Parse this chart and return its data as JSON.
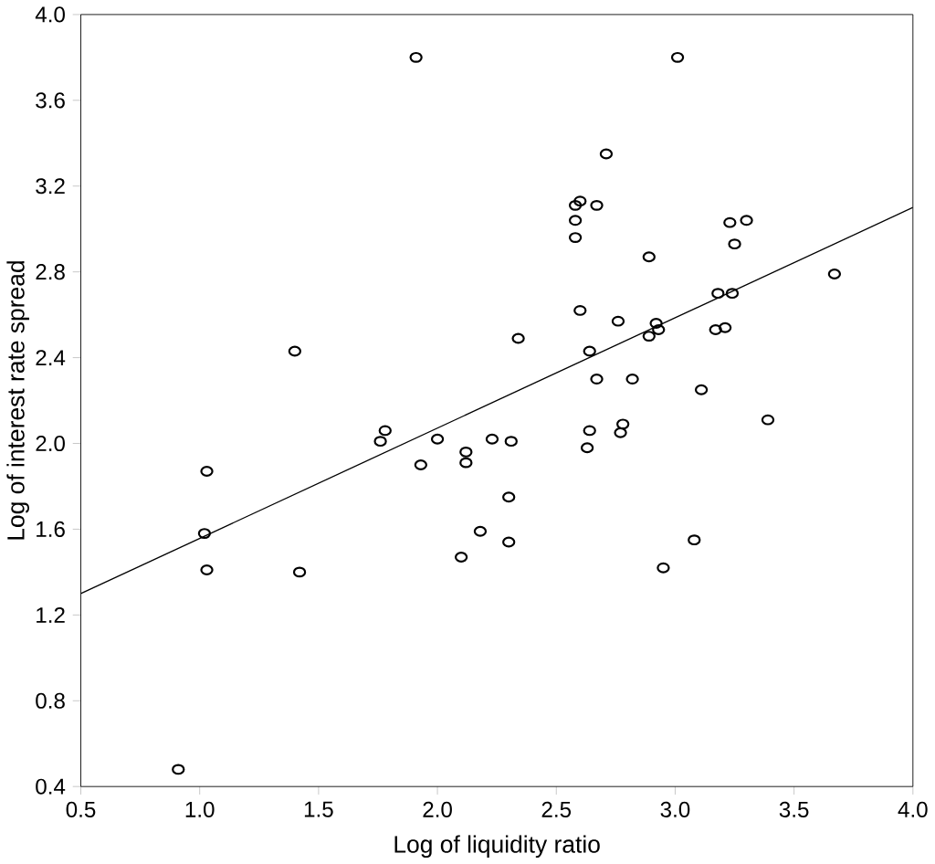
{
  "chart_data": {
    "type": "scatter",
    "xlabel": "Log of liquidity ratio",
    "ylabel": "Log of interest rate spread",
    "xlim": [
      0.5,
      4.0
    ],
    "ylim": [
      0.4,
      4.0
    ],
    "xticks": [
      {
        "value": 0.5,
        "label": "0.5"
      },
      {
        "value": 1.0,
        "label": "1.0"
      },
      {
        "value": 1.5,
        "label": "1.5"
      },
      {
        "value": 2.0,
        "label": "2.0"
      },
      {
        "value": 2.5,
        "label": "2.5"
      },
      {
        "value": 3.0,
        "label": "3.0"
      },
      {
        "value": 3.5,
        "label": "3.5"
      },
      {
        "value": 4.0,
        "label": "4.0"
      }
    ],
    "yticks": [
      {
        "value": 0.4,
        "label": "0.4"
      },
      {
        "value": 0.8,
        "label": "0.8"
      },
      {
        "value": 1.2,
        "label": "1.2"
      },
      {
        "value": 1.6,
        "label": "1.6"
      },
      {
        "value": 2.0,
        "label": "2.0"
      },
      {
        "value": 2.4,
        "label": "2.4"
      },
      {
        "value": 2.8,
        "label": "2.8"
      },
      {
        "value": 3.2,
        "label": "3.2"
      },
      {
        "value": 3.6,
        "label": "3.6"
      },
      {
        "value": 4.0,
        "label": "4.0"
      }
    ],
    "marker": "circle",
    "series": [
      {
        "color": "#000000",
        "x": [
          1.91,
          1.4,
          1.03,
          1.02,
          1.03,
          1.42,
          0.91,
          1.76,
          1.78,
          1.93,
          2.0,
          2.12,
          2.12,
          2.18,
          2.1,
          2.23,
          2.31,
          2.3,
          2.3,
          2.34,
          3.01,
          2.71,
          2.58,
          2.6,
          2.67,
          2.58,
          2.58,
          2.89,
          3.23,
          3.3,
          3.25,
          3.67,
          3.18,
          3.24,
          2.6,
          2.76,
          2.92,
          2.89,
          2.93,
          3.17,
          3.21,
          2.64,
          2.67,
          2.82,
          3.11,
          3.39,
          2.64,
          2.63,
          2.78,
          2.77,
          3.08,
          2.95
        ],
        "values": [
          3.8,
          2.43,
          1.87,
          1.58,
          1.41,
          1.4,
          0.48,
          2.01,
          2.06,
          1.9,
          2.02,
          1.96,
          1.91,
          1.59,
          1.47,
          2.02,
          2.01,
          1.75,
          1.54,
          2.49,
          3.8,
          3.35,
          3.11,
          3.13,
          3.11,
          3.04,
          2.96,
          2.87,
          3.03,
          3.04,
          2.93,
          2.79,
          2.7,
          2.7,
          2.62,
          2.57,
          2.56,
          2.5,
          2.53,
          2.53,
          2.54,
          2.43,
          2.3,
          2.3,
          2.25,
          2.11,
          2.06,
          1.98,
          2.09,
          2.05,
          1.55,
          1.42
        ]
      },
      {
        "type": "line",
        "color": "#000000",
        "marker": "none",
        "x": [
          0.5,
          4.0
        ],
        "values": [
          1.3,
          3.1
        ]
      }
    ]
  }
}
